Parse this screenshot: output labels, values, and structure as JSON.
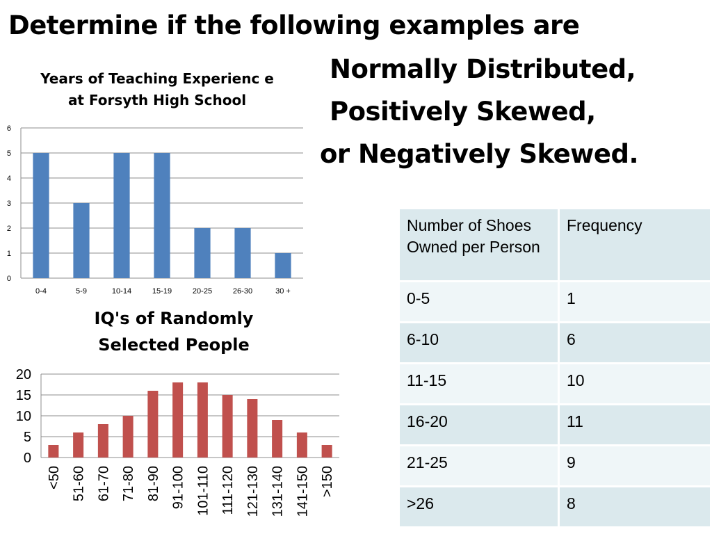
{
  "heading": {
    "line1": "Determine if the following examples are",
    "line2": "Normally Distributed,",
    "line3": "Positively Skewed,",
    "line4": "or Negatively Skewed."
  },
  "chart_data": [
    {
      "type": "bar",
      "title": "Years of Teaching Experienc e at Forsyth High School",
      "categories": [
        "0-4",
        "5-9",
        "10-14",
        "15-19",
        "20-25",
        "26-30",
        "30 +"
      ],
      "values": [
        5,
        3,
        5,
        5,
        2,
        2,
        1
      ],
      "ylim": [
        0,
        6
      ],
      "yticks": [
        0,
        1,
        2,
        3,
        4,
        5,
        6
      ],
      "grid": true,
      "color": "#4f81bd"
    },
    {
      "type": "bar",
      "title": "IQ's of Randomly Selected People",
      "categories": [
        "<50",
        "51-60",
        "61-70",
        "71-80",
        "81-90",
        "91-100",
        "101-110",
        "111-120",
        "121-130",
        "131-140",
        "141-150",
        ">150"
      ],
      "values": [
        3,
        6,
        8,
        10,
        16,
        18,
        18,
        15,
        14,
        9,
        6,
        3
      ],
      "ylim": [
        0,
        20
      ],
      "yticks": [
        0,
        5,
        10,
        15,
        20
      ],
      "grid": true,
      "color": "#c0504d"
    },
    {
      "type": "table",
      "headers": [
        "Number of Shoes Owned per Person",
        "Frequency"
      ],
      "rows": [
        [
          "0-5",
          "1"
        ],
        [
          "6-10",
          "6"
        ],
        [
          "11-15",
          "10"
        ],
        [
          "16-20",
          "11"
        ],
        [
          "21-25",
          "9"
        ],
        [
          ">26",
          "8"
        ]
      ]
    }
  ]
}
